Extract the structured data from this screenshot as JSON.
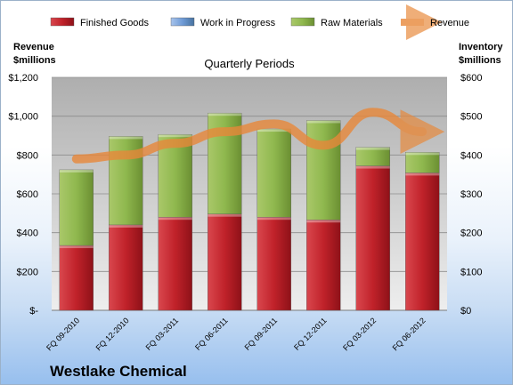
{
  "chart_data": {
    "type": "bar",
    "title": "Quarterly Periods",
    "company": "Westlake Chemical",
    "left_axis_title": "Revenue\n$millions",
    "right_axis_title": "Inventory\n$millions",
    "left_ylim": [
      0,
      1200
    ],
    "right_ylim": [
      0,
      600
    ],
    "left_ticks": [
      "$-",
      "$200",
      "$400",
      "$600",
      "$800",
      "$1,000",
      "$1,200"
    ],
    "right_ticks": [
      "$0",
      "$100",
      "$200",
      "$300",
      "$400",
      "$500",
      "$600"
    ],
    "grid": true,
    "legend_position": "top",
    "categories": [
      "FQ 09-2010",
      "FQ 12-2010",
      "FQ 03-2011",
      "FQ 06-2011",
      "FQ 09-2011",
      "FQ 12-2011",
      "FQ 03-2012",
      "FQ 06-2012"
    ],
    "series": [
      {
        "name": "Finished Goods",
        "axis": "right",
        "kind": "bar",
        "color": "#c0222a",
        "values": [
          167,
          220,
          240,
          248,
          240,
          233,
          372,
          354
        ]
      },
      {
        "name": "Work in Progress",
        "axis": "right",
        "kind": "bar",
        "color": "#6f9bd6",
        "values": [
          0,
          0,
          0,
          0,
          0,
          0,
          0,
          0
        ]
      },
      {
        "name": "Raw Materials",
        "axis": "right",
        "kind": "bar",
        "color": "#8fb84e",
        "values": [
          195,
          228,
          213,
          260,
          227,
          256,
          48,
          53
        ]
      },
      {
        "name": "Revenue",
        "axis": "left",
        "kind": "line",
        "color": "#e8883a",
        "values": [
          780,
          800,
          860,
          920,
          960,
          850,
          1020,
          920
        ]
      }
    ]
  }
}
